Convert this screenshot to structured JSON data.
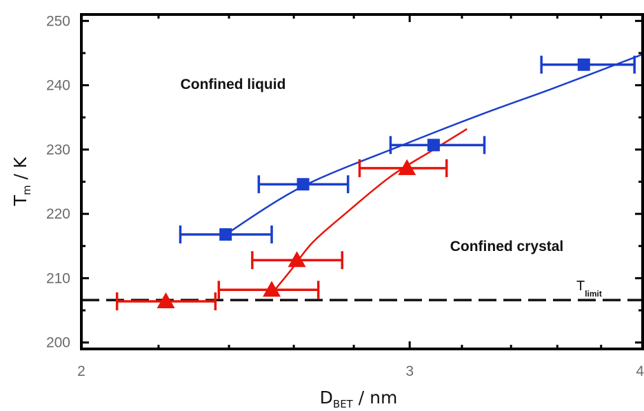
{
  "chart_data": {
    "type": "scatter",
    "x_axis": {
      "label_main": "D",
      "label_sub": "BET",
      "label_unit": " / nm",
      "scale": "log",
      "range": [
        2,
        4
      ],
      "tick_labels": [
        "2",
        "3",
        "4"
      ]
    },
    "y_axis": {
      "label_main": "T",
      "label_sub": "m",
      "label_unit": " / K",
      "range": [
        199,
        251
      ],
      "tick_labels": [
        "200",
        "210",
        "220",
        "230",
        "240",
        "250"
      ]
    },
    "series": [
      {
        "marker": "square",
        "color": "#1a3fcc",
        "points": [
          {
            "x": 2.39,
            "y": 216.8,
            "xlo": 2.26,
            "xhi": 2.53
          },
          {
            "x": 2.63,
            "y": 224.6,
            "xlo": 2.49,
            "xhi": 2.78
          },
          {
            "x": 3.09,
            "y": 230.7,
            "xlo": 2.93,
            "xhi": 3.29
          },
          {
            "x": 3.72,
            "y": 243.2,
            "xlo": 3.53,
            "xhi": 3.96
          }
        ],
        "fit": [
          [
            2.39,
            216.8
          ],
          [
            2.63,
            224.3
          ],
          [
            2.98,
            230.8
          ],
          [
            3.28,
            235.5
          ],
          [
            3.58,
            239.5
          ],
          [
            4.0,
            244.8
          ]
        ]
      },
      {
        "marker": "triangle",
        "color": "#e8140a",
        "points": [
          {
            "x": 2.22,
            "y": 206.4,
            "xlo": 2.09,
            "xhi": 2.36
          },
          {
            "x": 2.53,
            "y": 208.2,
            "xlo": 2.37,
            "xhi": 2.68
          },
          {
            "x": 2.61,
            "y": 212.8,
            "xlo": 2.47,
            "xhi": 2.76
          },
          {
            "x": 2.99,
            "y": 227.1,
            "xlo": 2.82,
            "xhi": 3.14
          }
        ],
        "fit": [
          [
            2.53,
            207.6
          ],
          [
            2.59,
            211.2
          ],
          [
            2.66,
            215.5
          ],
          [
            2.77,
            220.0
          ],
          [
            2.93,
            225.8
          ],
          [
            3.09,
            230.0
          ],
          [
            3.22,
            233.2
          ]
        ]
      }
    ],
    "reference_line": {
      "y": 206.6,
      "style": "dashed",
      "label_main": "T",
      "label_sub": "limit"
    },
    "annotations": [
      {
        "text": "Confined liquid",
        "x": 2.56,
        "y": 240.2
      },
      {
        "text": "Confined crystal",
        "x": 3.52,
        "y": 215.8
      }
    ],
    "grid": false,
    "legend": "none"
  }
}
